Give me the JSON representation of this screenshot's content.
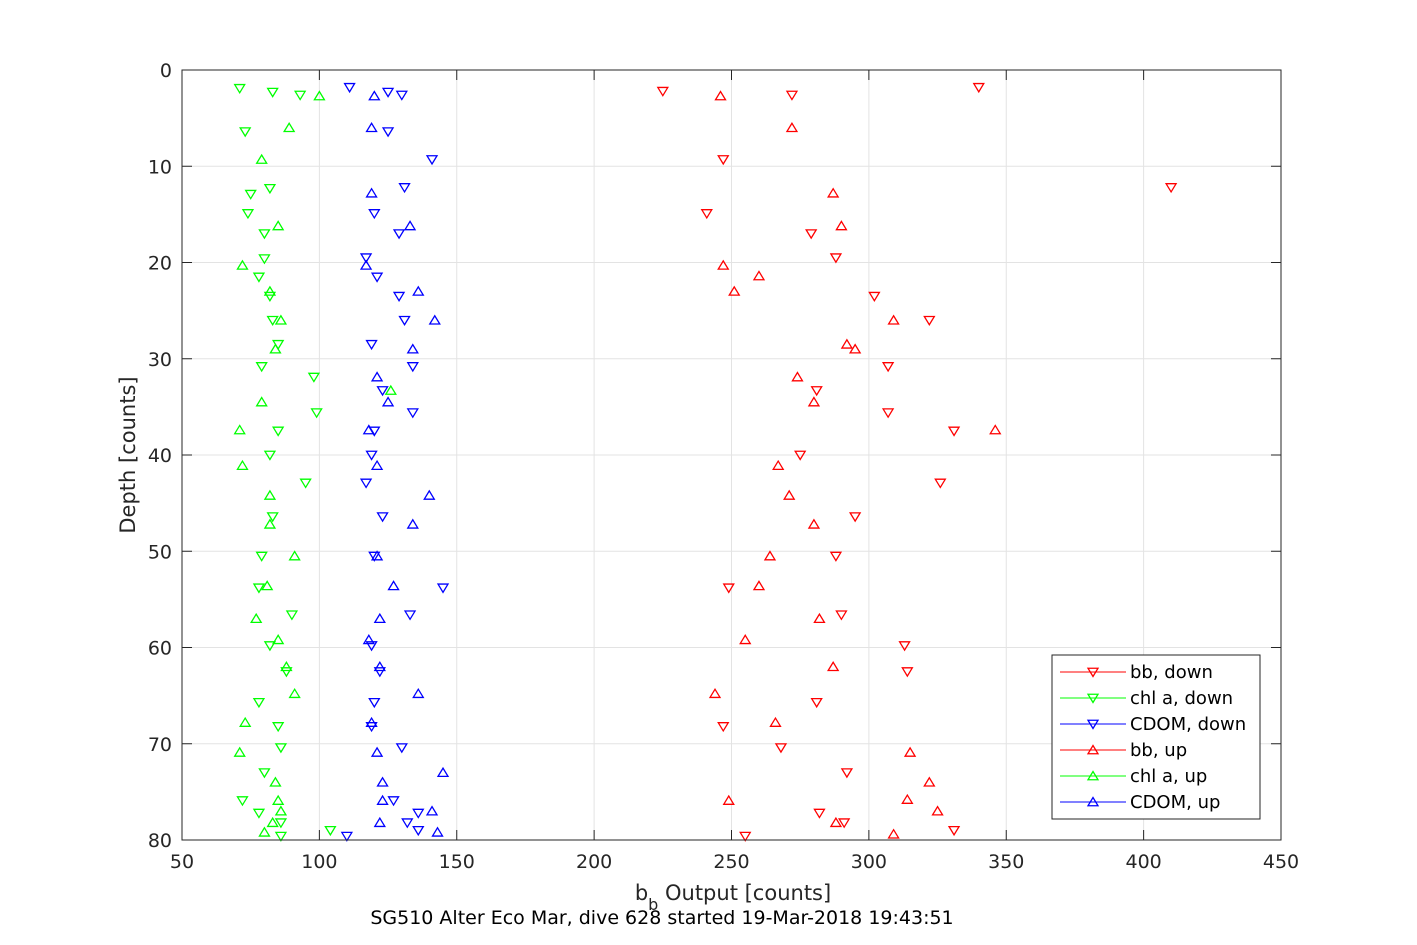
{
  "chart_data": {
    "type": "scatter",
    "xlabel": "b_b Output [counts]",
    "xlabel_main": "b",
    "xlabel_sub": "b",
    "xlabel_rest": " Output [counts]",
    "ylabel": "Depth [counts]",
    "caption": "SG510 Alter Eco Mar, dive 628 started 19-Mar-2018 19:43:51",
    "xlim": [
      50,
      450
    ],
    "ylim": [
      0,
      80
    ],
    "y_reversed": true,
    "grid": true,
    "legend_position": "lower-right",
    "xticks": [
      "50",
      "100",
      "150",
      "200",
      "250",
      "300",
      "350",
      "400",
      "450"
    ],
    "yticks": [
      "0",
      "10",
      "20",
      "30",
      "40",
      "50",
      "60",
      "70",
      "80"
    ],
    "series": [
      {
        "name": "bb, down",
        "color": "#ff0000",
        "marker": "triangle-down",
        "points": [
          [
            225,
            2.2
          ],
          [
            272,
            2.6
          ],
          [
            340,
            1.8
          ],
          [
            247,
            9.3
          ],
          [
            410,
            12.2
          ],
          [
            241,
            14.9
          ],
          [
            279,
            17.0
          ],
          [
            288,
            19.5
          ],
          [
            302,
            23.5
          ],
          [
            322,
            26.0
          ],
          [
            307,
            30.8
          ],
          [
            281,
            33.3
          ],
          [
            307,
            35.6
          ],
          [
            331,
            37.5
          ],
          [
            275,
            40.0
          ],
          [
            326,
            42.9
          ],
          [
            295,
            46.4
          ],
          [
            288,
            50.5
          ],
          [
            249,
            53.8
          ],
          [
            290,
            56.6
          ],
          [
            313,
            59.8
          ],
          [
            314,
            62.5
          ],
          [
            281,
            65.7
          ],
          [
            247,
            68.2
          ],
          [
            268,
            70.4
          ],
          [
            292,
            73.0
          ],
          [
            282,
            77.2
          ],
          [
            291,
            78.2
          ],
          [
            331,
            79.0
          ],
          [
            255,
            79.6
          ]
        ]
      },
      {
        "name": "chl a, down",
        "color": "#00ff00",
        "marker": "triangle-down",
        "points": [
          [
            71,
            1.9
          ],
          [
            83,
            2.3
          ],
          [
            93,
            2.6
          ],
          [
            73,
            6.4
          ],
          [
            82,
            12.3
          ],
          [
            75,
            12.9
          ],
          [
            74,
            14.9
          ],
          [
            80,
            17.0
          ],
          [
            80,
            19.6
          ],
          [
            78,
            21.5
          ],
          [
            82,
            23.5
          ],
          [
            83,
            26.0
          ],
          [
            85,
            28.5
          ],
          [
            79,
            30.8
          ],
          [
            98,
            31.9
          ],
          [
            99,
            35.6
          ],
          [
            85,
            37.5
          ],
          [
            82,
            40.0
          ],
          [
            95,
            42.9
          ],
          [
            83,
            46.4
          ],
          [
            79,
            50.5
          ],
          [
            78,
            53.8
          ],
          [
            90,
            56.6
          ],
          [
            82,
            59.8
          ],
          [
            88,
            62.5
          ],
          [
            78,
            65.7
          ],
          [
            85,
            68.2
          ],
          [
            86,
            70.4
          ],
          [
            80,
            73.0
          ],
          [
            72,
            75.9
          ],
          [
            78,
            77.2
          ],
          [
            86,
            78.2
          ],
          [
            104,
            79.0
          ],
          [
            86,
            79.6
          ]
        ]
      },
      {
        "name": "CDOM, down",
        "color": "#0000ff",
        "marker": "triangle-down",
        "points": [
          [
            111,
            1.8
          ],
          [
            125,
            2.3
          ],
          [
            130,
            2.6
          ],
          [
            125,
            6.4
          ],
          [
            141,
            9.3
          ],
          [
            131,
            12.2
          ],
          [
            120,
            14.9
          ],
          [
            129,
            17.0
          ],
          [
            117,
            19.5
          ],
          [
            121,
            21.5
          ],
          [
            129,
            23.5
          ],
          [
            131,
            26.0
          ],
          [
            119,
            28.5
          ],
          [
            134,
            30.8
          ],
          [
            123,
            33.3
          ],
          [
            134,
            35.6
          ],
          [
            120,
            37.5
          ],
          [
            119,
            40.0
          ],
          [
            117,
            42.9
          ],
          [
            123,
            46.4
          ],
          [
            120,
            50.5
          ],
          [
            145,
            53.8
          ],
          [
            133,
            56.6
          ],
          [
            119,
            59.8
          ],
          [
            122,
            62.5
          ],
          [
            120,
            65.7
          ],
          [
            119,
            68.2
          ],
          [
            130,
            70.4
          ],
          [
            127,
            75.9
          ],
          [
            136,
            77.2
          ],
          [
            132,
            78.2
          ],
          [
            136,
            79.0
          ],
          [
            110,
            79.6
          ]
        ]
      },
      {
        "name": "bb, up",
        "color": "#ff0000",
        "marker": "triangle-up",
        "points": [
          [
            246,
            2.7
          ],
          [
            272,
            6.0
          ],
          [
            287,
            12.8
          ],
          [
            290,
            16.2
          ],
          [
            247,
            20.3
          ],
          [
            260,
            21.4
          ],
          [
            251,
            23.0
          ],
          [
            309,
            26.0
          ],
          [
            292,
            28.5
          ],
          [
            295,
            29.0
          ],
          [
            274,
            31.9
          ],
          [
            280,
            34.5
          ],
          [
            346,
            37.4
          ],
          [
            267,
            41.1
          ],
          [
            271,
            44.2
          ],
          [
            280,
            47.2
          ],
          [
            264,
            50.5
          ],
          [
            260,
            53.6
          ],
          [
            282,
            57.0
          ],
          [
            255,
            59.2
          ],
          [
            287,
            62.0
          ],
          [
            244,
            64.8
          ],
          [
            266,
            67.8
          ],
          [
            315,
            70.9
          ],
          [
            322,
            74.0
          ],
          [
            314,
            75.8
          ],
          [
            249,
            75.9
          ],
          [
            325,
            77.0
          ],
          [
            288,
            78.2
          ],
          [
            309,
            79.4
          ]
        ]
      },
      {
        "name": "chl a, up",
        "color": "#00ff00",
        "marker": "triangle-up",
        "points": [
          [
            100,
            2.7
          ],
          [
            89,
            6.0
          ],
          [
            79,
            9.3
          ],
          [
            85,
            16.2
          ],
          [
            72,
            20.3
          ],
          [
            82,
            23.0
          ],
          [
            86,
            26.0
          ],
          [
            84,
            29.0
          ],
          [
            126,
            33.3
          ],
          [
            79,
            34.5
          ],
          [
            71,
            37.4
          ],
          [
            72,
            41.1
          ],
          [
            82,
            44.2
          ],
          [
            82,
            47.2
          ],
          [
            91,
            50.5
          ],
          [
            81,
            53.6
          ],
          [
            77,
            57.0
          ],
          [
            85,
            59.2
          ],
          [
            88,
            62.0
          ],
          [
            91,
            64.8
          ],
          [
            73,
            67.8
          ],
          [
            71,
            70.9
          ],
          [
            84,
            74.0
          ],
          [
            85,
            75.9
          ],
          [
            86,
            77.0
          ],
          [
            83,
            78.2
          ],
          [
            80,
            79.2
          ]
        ]
      },
      {
        "name": "CDOM, up",
        "color": "#0000ff",
        "marker": "triangle-up",
        "points": [
          [
            120,
            2.7
          ],
          [
            119,
            6.0
          ],
          [
            119,
            12.8
          ],
          [
            133,
            16.2
          ],
          [
            117,
            20.3
          ],
          [
            136,
            23.0
          ],
          [
            142,
            26.0
          ],
          [
            134,
            29.0
          ],
          [
            121,
            31.9
          ],
          [
            125,
            34.5
          ],
          [
            118,
            37.4
          ],
          [
            121,
            41.1
          ],
          [
            140,
            44.2
          ],
          [
            134,
            47.2
          ],
          [
            121,
            50.5
          ],
          [
            127,
            53.6
          ],
          [
            122,
            57.0
          ],
          [
            118,
            59.2
          ],
          [
            122,
            62.0
          ],
          [
            136,
            64.8
          ],
          [
            119,
            67.8
          ],
          [
            121,
            70.9
          ],
          [
            145,
            73.0
          ],
          [
            123,
            74.0
          ],
          [
            123,
            75.9
          ],
          [
            141,
            77.0
          ],
          [
            122,
            78.2
          ],
          [
            143,
            79.2
          ]
        ]
      }
    ]
  }
}
